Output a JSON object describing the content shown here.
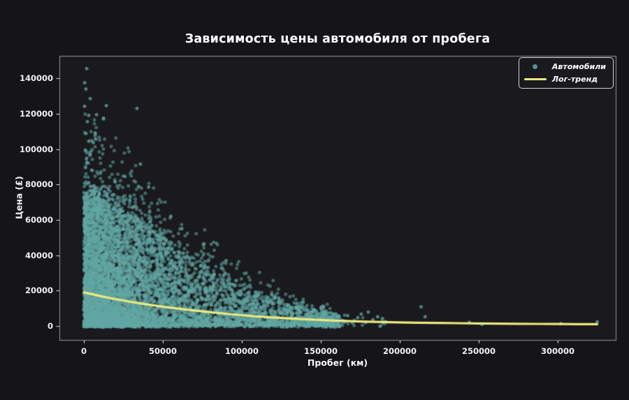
{
  "figure": {
    "background": "#151419",
    "axes_background": "#1a191d",
    "spine_color": "#8f8f8f",
    "tick_color": "#e8e8e8",
    "text_color": "#ffffff"
  },
  "chart_data": {
    "type": "scatter",
    "title": "Зависимость цены автомобиля от пробега",
    "xlabel": "Пробег (км)",
    "ylabel": "Цена (£)",
    "xlim": [
      -15500,
      336700
    ],
    "ylim": [
      -7900,
      152700
    ],
    "xticks": [
      0,
      50000,
      100000,
      150000,
      200000,
      250000,
      300000
    ],
    "yticks": [
      0,
      20000,
      40000,
      60000,
      80000,
      100000,
      120000,
      140000
    ],
    "grid": false,
    "legend_position": "upper right",
    "series": [
      {
        "name": "Автомобили",
        "type": "scatter",
        "color": "#63a8a4",
        "alpha": 0.55,
        "marker_radius": 2.5,
        "cloud": {
          "comment": "approx 10k cars: dense wedge, price envelope decays with mileage",
          "n": 7000,
          "seed": 42,
          "x_exp_mean": 28000,
          "x_uniform_frac": 0.3,
          "x_uniform_max": 162000,
          "x_max": 193000,
          "envelope": {
            "base": 73000,
            "scale_km": 90000,
            "power": 1.6,
            "floor": 800
          },
          "price_power": 1.7,
          "above_envelope_frac": 0.05,
          "price_jitter": 1400
        },
        "outlier_points": [
          [
            1800,
            145500
          ],
          [
            500,
            137500
          ],
          [
            1300,
            134000
          ],
          [
            4000,
            128500
          ],
          [
            400,
            124200
          ],
          [
            14200,
            124600
          ],
          [
            33600,
            123000
          ],
          [
            3100,
            119100
          ],
          [
            8000,
            119500
          ],
          [
            12400,
            117500
          ],
          [
            2200,
            115500
          ],
          [
            7100,
            109200
          ],
          [
            1300,
            108800
          ],
          [
            3100,
            104500
          ],
          [
            900,
            99400
          ],
          [
            4000,
            97000
          ],
          [
            35800,
            91500
          ],
          [
            2000,
            92500
          ],
          [
            26000,
            84500
          ],
          [
            41000,
            78500
          ],
          [
            55000,
            62000
          ],
          [
            62000,
            55000
          ],
          [
            76000,
            46500
          ],
          [
            90000,
            37000
          ]
        ],
        "sparse_points": [
          [
            146000,
            1600
          ],
          [
            148000,
            6700
          ],
          [
            150000,
            4000
          ],
          [
            152500,
            7900
          ],
          [
            156000,
            7500
          ],
          [
            158000,
            2500
          ],
          [
            161500,
            5500
          ],
          [
            164000,
            3000
          ],
          [
            167000,
            5900
          ],
          [
            170000,
            1800
          ],
          [
            173400,
            4700
          ],
          [
            175600,
            6700
          ],
          [
            178300,
            2000
          ],
          [
            180000,
            7900
          ],
          [
            183000,
            3500
          ],
          [
            186000,
            5200
          ],
          [
            189000,
            4200
          ],
          [
            191000,
            2500
          ],
          [
            213500,
            10800
          ],
          [
            216000,
            5200
          ],
          [
            244000,
            2100
          ],
          [
            252000,
            900
          ],
          [
            302000,
            1400
          ],
          [
            325000,
            2400
          ]
        ]
      },
      {
        "name": "Лог-тренд",
        "type": "line",
        "color": "#ece97e",
        "width": 3.2,
        "points": [
          [
            0,
            19000
          ],
          [
            10000,
            17000
          ],
          [
            20000,
            15200
          ],
          [
            30000,
            13600
          ],
          [
            40000,
            12200
          ],
          [
            50000,
            10900
          ],
          [
            60000,
            9800
          ],
          [
            70000,
            8750
          ],
          [
            80000,
            7800
          ],
          [
            90000,
            6900
          ],
          [
            100000,
            6100
          ],
          [
            110000,
            5400
          ],
          [
            120000,
            4800
          ],
          [
            130000,
            4300
          ],
          [
            140000,
            3800
          ],
          [
            150000,
            3400
          ],
          [
            160000,
            3000
          ],
          [
            170000,
            2700
          ],
          [
            180000,
            2400
          ],
          [
            190000,
            2200
          ],
          [
            200000,
            2000
          ],
          [
            212500,
            1850
          ],
          [
            225000,
            1700
          ],
          [
            237500,
            1570
          ],
          [
            250000,
            1450
          ],
          [
            262500,
            1350
          ],
          [
            275000,
            1250
          ],
          [
            287500,
            1170
          ],
          [
            300000,
            1100
          ],
          [
            312500,
            1050
          ],
          [
            325000,
            1000
          ]
        ]
      }
    ]
  }
}
